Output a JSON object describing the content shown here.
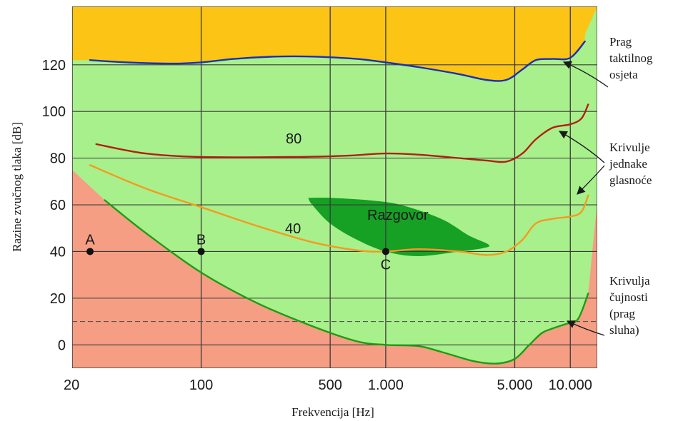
{
  "chart_data": {
    "type": "line",
    "xlabel": "Frekvencija [Hz]",
    "ylabel": "Razine zvučnog tlaka [dB]",
    "x_scale": "log",
    "xlim": [
      20,
      14000
    ],
    "ylim": [
      -10,
      145
    ],
    "grid": true,
    "x_ticks": [
      {
        "value": 20,
        "label": "20"
      },
      {
        "value": 100,
        "label": "100"
      },
      {
        "value": 500,
        "label": "500"
      },
      {
        "value": 1000,
        "label": "1.000"
      },
      {
        "value": 5000,
        "label": "5.000"
      },
      {
        "value": 10000,
        "label": "10.000"
      }
    ],
    "y_ticks": [
      {
        "value": 0,
        "label": "0"
      },
      {
        "value": 20,
        "label": "20"
      },
      {
        "value": 40,
        "label": "40"
      },
      {
        "value": 60,
        "label": "60"
      },
      {
        "value": 80,
        "label": "80"
      },
      {
        "value": 100,
        "label": "100"
      },
      {
        "value": 120,
        "label": "120"
      }
    ],
    "colors": {
      "upper_region": "#fcc414",
      "audible_region": "#a8f08c",
      "below_threshold_region": "#f59e84",
      "tactile_line": "#1a2fb8",
      "loudness80_line": "#b41e14",
      "loudness40_line": "#f59a1e",
      "hearing_threshold_line": "#1e9c14",
      "speech_region": "#16a024",
      "grid": "#3a3a3a",
      "dashed_line": "#555555"
    },
    "series": [
      {
        "role": "tactile_threshold",
        "x": [
          25,
          40,
          70,
          100,
          150,
          250,
          400,
          700,
          1000,
          1500,
          2500,
          3500,
          4500,
          5500,
          6500,
          8000,
          10000,
          12000
        ],
        "y": [
          122,
          121,
          120.5,
          121,
          122.5,
          123.5,
          123.5,
          122.5,
          121,
          119,
          116,
          113.5,
          113.5,
          118,
          122,
          122.5,
          123,
          130
        ]
      },
      {
        "role": "loudness_80",
        "x": [
          27,
          50,
          100,
          300,
          600,
          1000,
          1500,
          2500,
          3500,
          4500,
          5500,
          6500,
          8000,
          10000,
          11500,
          12500
        ],
        "y": [
          86,
          82,
          80.5,
          80.5,
          81,
          82,
          81.5,
          80,
          79,
          78.5,
          82,
          88,
          93,
          94.5,
          97,
          103
        ]
      },
      {
        "role": "loudness_40",
        "x": [
          25,
          50,
          100,
          200,
          400,
          700,
          1000,
          1500,
          2500,
          3500,
          4500,
          5500,
          6500,
          8000,
          10000,
          11500,
          12500
        ],
        "y": [
          77,
          67,
          59,
          51,
          44,
          40.5,
          40,
          41,
          40,
          38.5,
          40,
          45,
          52,
          54,
          55,
          57,
          64
        ]
      },
      {
        "role": "hearing_threshold",
        "x": [
          30,
          50,
          100,
          200,
          400,
          700,
          1000,
          1500,
          2000,
          3000,
          4000,
          5000,
          6000,
          7000,
          8000,
          9500,
          11000,
          12500
        ],
        "y": [
          62,
          48,
          31,
          18,
          8,
          1.5,
          0,
          -0.5,
          -3,
          -7,
          -8,
          -6,
          0,
          5,
          7,
          9,
          11,
          22
        ]
      }
    ],
    "speech_area": {
      "x": [
        380,
        500,
        800,
        1200,
        2000,
        2800,
        3600,
        3400,
        2500,
        1500,
        1000,
        700,
        500,
        400
      ],
      "y": [
        63,
        63,
        62,
        60,
        54,
        47,
        43,
        41.5,
        40,
        38,
        40,
        45,
        52,
        60
      ]
    },
    "points": [
      {
        "name": "A",
        "x": 25,
        "y": 40
      },
      {
        "name": "B",
        "x": 100,
        "y": 40
      },
      {
        "name": "C",
        "x": 1000,
        "y": 40
      }
    ],
    "reference_line_db": 10,
    "inner_labels": {
      "loudness80": "80",
      "loudness40": "40",
      "speech": "Razgovor"
    },
    "annotations": [
      {
        "role": "tactile",
        "lines": [
          "Prag",
          "taktilnog",
          "osjeta"
        ]
      },
      {
        "role": "loudness",
        "lines": [
          "Krivulje",
          "jednake",
          "glasnoće"
        ]
      },
      {
        "role": "hearing",
        "lines": [
          "Krivulja",
          "čujnosti",
          "(prag",
          "sluha)"
        ]
      }
    ]
  }
}
